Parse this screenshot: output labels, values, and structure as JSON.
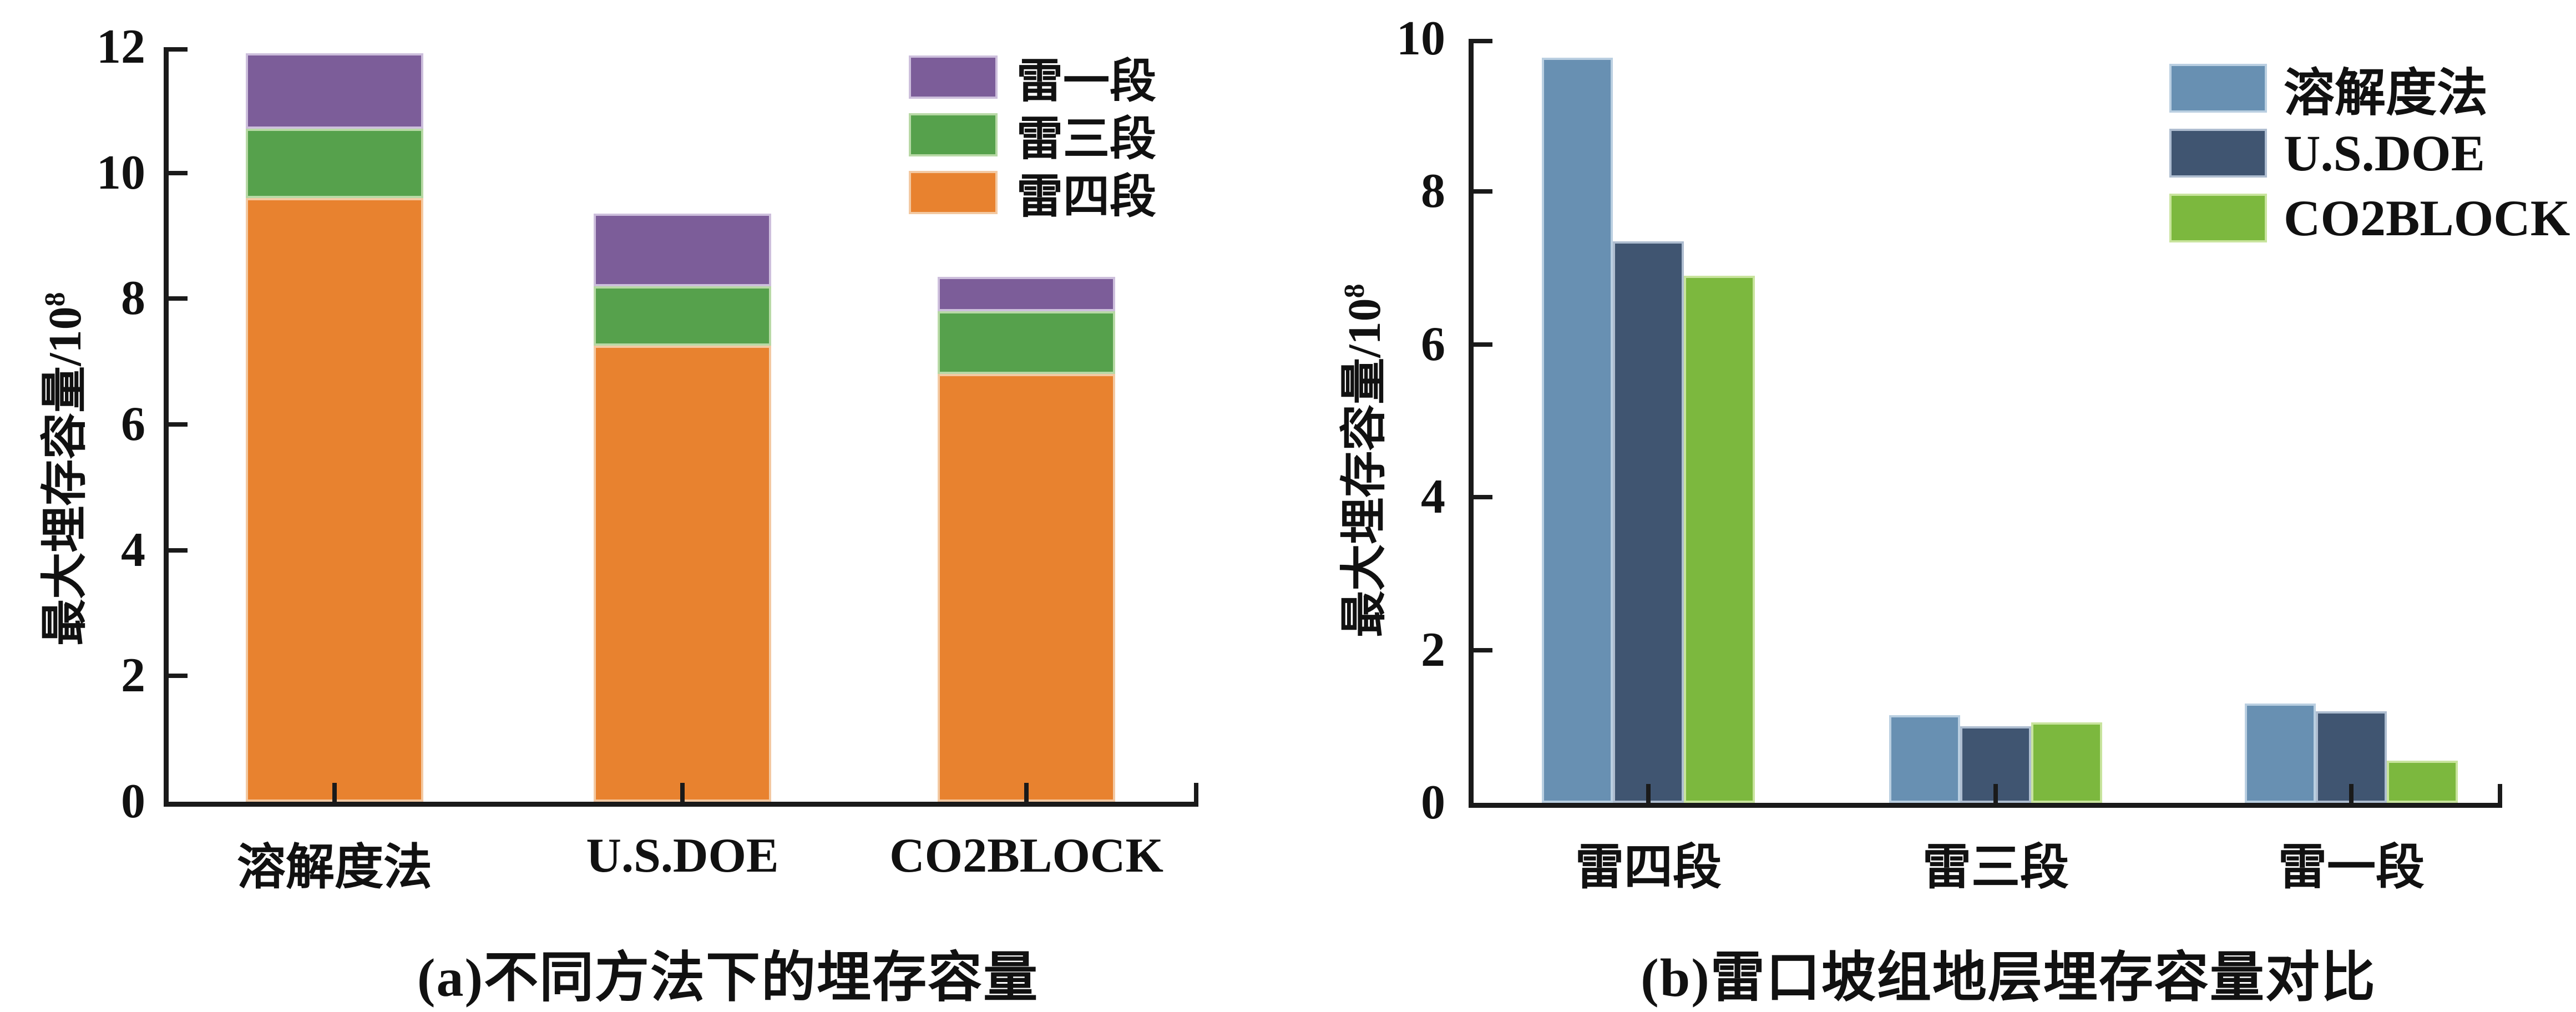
{
  "figure": {
    "background": "#FFFFFF",
    "axis_color": "#1A1A1A",
    "y_axis_label": {
      "base": "最大埋存容量/10",
      "superscript": "8"
    }
  },
  "chart_data": [
    {
      "panel": "a",
      "type": "bar",
      "stacked": true,
      "title": "(a)不同方法下的埋存容量",
      "ylabel": "最大埋存容量/10^8",
      "xlabel": "",
      "ylim": [
        0,
        12
      ],
      "yticks": [
        0,
        2,
        4,
        6,
        8,
        10,
        12
      ],
      "grid": false,
      "categories": [
        "溶解度法",
        "U.S.DOE",
        "CO2BLOCK"
      ],
      "series": [
        {
          "name": "雷四段",
          "color": "#E8822F",
          "edge": "#F3C9A2",
          "values": [
            9.6,
            7.25,
            6.8
          ]
        },
        {
          "name": "雷三段",
          "color": "#56A14C",
          "edge": "#B8D9A6",
          "values": [
            1.1,
            0.95,
            1.0
          ]
        },
        {
          "name": "雷一段",
          "color": "#7C5D99",
          "edge": "#CDBFDC",
          "values": [
            1.2,
            1.15,
            0.55
          ]
        }
      ],
      "stack_totals": [
        11.9,
        9.35,
        8.35
      ],
      "legend_order": [
        "雷一段",
        "雷三段",
        "雷四段"
      ],
      "legend_position": "top-right"
    },
    {
      "panel": "b",
      "type": "bar",
      "stacked": false,
      "title": "(b)雷口坡组地层埋存容量对比",
      "ylabel": "最大埋存容量/10^8",
      "xlabel": "",
      "ylim": [
        0,
        10
      ],
      "yticks": [
        0,
        2,
        4,
        6,
        8,
        10
      ],
      "grid": false,
      "categories": [
        "雷四段",
        "雷三段",
        "雷一段"
      ],
      "series": [
        {
          "name": "溶解度法",
          "color": "#6890B2",
          "edge": "#BACFE1",
          "values": [
            9.75,
            1.15,
            1.3
          ]
        },
        {
          "name": "U.S.DOE",
          "color": "#405571",
          "edge": "#AEBDD0",
          "values": [
            7.35,
            1.0,
            1.2
          ]
        },
        {
          "name": "CO2BLOCK",
          "color": "#7CB83E",
          "edge": "#C9E49E",
          "values": [
            6.9,
            1.05,
            0.55
          ]
        }
      ],
      "legend_order": [
        "溶解度法",
        "U.S.DOE",
        "CO2BLOCK"
      ],
      "legend_position": "top-right"
    }
  ]
}
